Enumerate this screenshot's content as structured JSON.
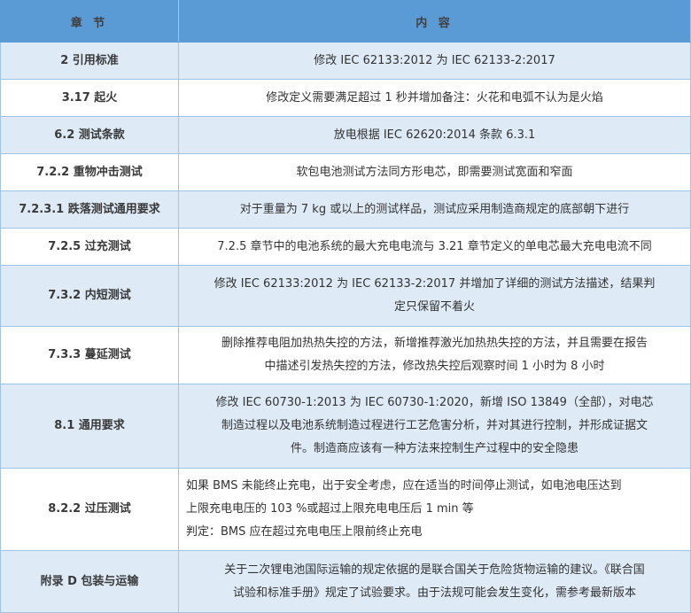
{
  "header": {
    "section": "章 节",
    "content": "内 容"
  },
  "rows": [
    {
      "section": "2  引用标准",
      "lines": [
        "修改 IEC  62133:2012 为 IEC  62133-2:2017"
      ]
    },
    {
      "section": "3.17  起火",
      "lines": [
        "修改定义需要满足超过 1 秒并增加备注：火花和电弧不认为是火焰"
      ]
    },
    {
      "section": "6.2  测试条款",
      "lines": [
        "放电根据 IEC  62620:2014  条款  6.3.1"
      ]
    },
    {
      "section": "7.2.2  重物冲击测试",
      "lines": [
        "软包电池测试方法同方形电芯，即需要测试宽面和窄面"
      ]
    },
    {
      "section": "7.2.3.1  跌落测试通用要求",
      "lines": [
        "对于重量为 7  kg 或以上的测试样品，测试应采用制造商规定的底部朝下进行"
      ]
    },
    {
      "section": "7.2.5  过充测试",
      "lines": [
        "7.2.5 章节中的电池系统的最大充电电流与 3.21 章节定义的单电芯最大充电电流不同"
      ]
    },
    {
      "section": "7.3.2  内短测试",
      "lines": [
        "修改 IEC  62133:2012 为 IEC  62133-2:2017 并增加了详细的测试方法描述，结果判",
        "定只保留不着火"
      ]
    },
    {
      "section": "7.3.3  蔓延测试",
      "lines": [
        "删除推荐电阻加热热失控的方法，新增推荐激光加热热失控的方法，并且需要在报告",
        "中描述引发热失控的方法，修改热失控后观察时间 1 小时为 8 小时"
      ]
    },
    {
      "section": "8.1  通用要求",
      "lines": [
        "修改 IEC  60730-1:2013 为 IEC  60730-1:2020，新增 ISO  13849（全部），对电芯",
        "制造过程以及电池系统制造过程进行工艺危害分析，并对其进行控制，并形成证据文",
        "件。制造商应该有一种方法来控制生产过程中的安全隐患"
      ]
    },
    {
      "section": "8.2.2  过压测试",
      "lines": [
        "如果 BMS 未能终止充电，出于安全考虑，应在适当的时间停止测试，如电池电压达到",
        "上限充电电压的 103  %或超过上限充电电压后 1  min 等",
        "判定：BMS 应在超过充电电压上限前终止充电"
      ]
    },
    {
      "section": "附录 D  包装与运输",
      "lines": [
        "关于二次锂电池国际运输的规定依据的是联合国关于危险货物运输的建议。《联合国",
        "试验和标准手册》规定了试验要求。由于法规可能会发生变化，需参考最新版本"
      ]
    }
  ],
  "colors": {
    "header_bg": "#5b9bd5",
    "row_alt_bg": "#deeaf6",
    "border": "#9dc3e6"
  }
}
